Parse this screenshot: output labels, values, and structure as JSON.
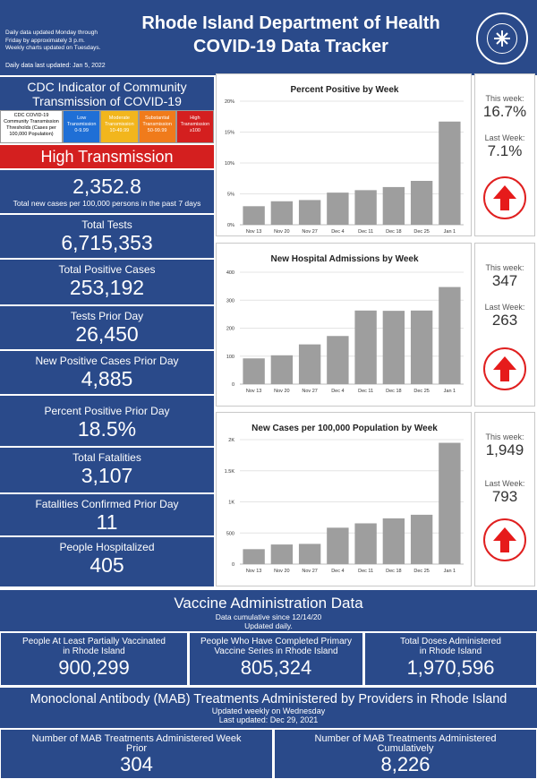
{
  "header": {
    "note_line1": "Daily data updated Monday through",
    "note_line2": "Friday by approximately 3 p.m.",
    "note_line3": "Weekly charts updated on Tuesdays.",
    "last_updated": "Daily data last updated: Jan 5, 2022",
    "title_line1": "Rhode Island Department of Health",
    "title_line2": "COVID-19 Data Tracker",
    "seal_text": "RHODE ISLAND DEPARTMENT OF HEALTH"
  },
  "cdc": {
    "title_line1": "CDC Indicator of Community",
    "title_line2": "Transmission of COVID-19",
    "legend_label": "CDC COVID-19 Community Transmission Thresholds (Cases per 100,000 Population)",
    "levels": [
      {
        "name": "Low Transmission",
        "range": "0-9.99",
        "color": "#1f6fd6"
      },
      {
        "name": "Moderate Transmission",
        "range": "10-49.99",
        "color": "#f2b61d"
      },
      {
        "name": "Substantial Transmission",
        "range": "50-99.99",
        "color": "#f07b1b"
      },
      {
        "name": "High Transmission",
        "range": "≥100",
        "color": "#d41f1f"
      }
    ],
    "status": "High Transmission",
    "status_color": "#d41f1f",
    "rate": "2,352.8",
    "rate_label": "Total new cases per 100,000 persons in the past 7 days"
  },
  "stats": [
    {
      "label": "Total Tests",
      "value": "6,715,353"
    },
    {
      "label": "Total Positive Cases",
      "value": "253,192"
    },
    {
      "label": "Tests Prior Day",
      "value": "26,450"
    },
    {
      "label": "New Positive Cases Prior Day",
      "value": "4,885"
    },
    {
      "label": "Percent Positive Prior Day",
      "value": "18.5%"
    },
    {
      "label": "Total Fatalities",
      "value": "3,107"
    },
    {
      "label": "Fatalities Confirmed Prior Day",
      "value": "11"
    },
    {
      "label": "People Hospitalized",
      "value": "405"
    }
  ],
  "chart_data": [
    {
      "type": "bar",
      "title": "Percent Positive by Week",
      "categories": [
        "Nov 13",
        "Nov 20",
        "Nov 27",
        "Dec 4",
        "Dec 11",
        "Dec 18",
        "Dec 25",
        "Jan 1"
      ],
      "values": [
        3.0,
        3.8,
        4.0,
        5.2,
        5.6,
        6.1,
        7.1,
        16.7
      ],
      "ylim": [
        0,
        20
      ],
      "yticks": [
        0,
        5,
        10,
        15,
        20
      ],
      "ytick_labels": [
        "0%",
        "5%",
        "10%",
        "15%",
        "20%"
      ],
      "color": "#9e9e9e"
    },
    {
      "type": "bar",
      "title": "New Hospital Admissions by Week",
      "categories": [
        "Nov 13",
        "Nov 20",
        "Nov 27",
        "Dec 4",
        "Dec 11",
        "Dec 18",
        "Dec 25",
        "Jan 1"
      ],
      "values": [
        92,
        103,
        142,
        172,
        263,
        262,
        263,
        347
      ],
      "ylim": [
        0,
        400
      ],
      "yticks": [
        0,
        100,
        200,
        300,
        400
      ],
      "ytick_labels": [
        "0",
        "100",
        "200",
        "300",
        "400"
      ],
      "color": "#9e9e9e"
    },
    {
      "type": "bar",
      "title": "New Cases per 100,000 Population by Week",
      "categories": [
        "Nov 13",
        "Nov 20",
        "Nov 27",
        "Dec 4",
        "Dec 11",
        "Dec 18",
        "Dec 25",
        "Jan 1"
      ],
      "values": [
        240,
        315,
        325,
        585,
        655,
        735,
        793,
        1949
      ],
      "ylim": [
        0,
        2000
      ],
      "yticks": [
        0,
        500,
        1000,
        1500,
        2000
      ],
      "ytick_labels": [
        "0",
        "500",
        "1K",
        "1.5K",
        "2K"
      ],
      "color": "#9e9e9e"
    }
  ],
  "side": [
    {
      "this_label": "This week:",
      "this_value": "16.7%",
      "last_label": "Last Week:",
      "last_value": "7.1%",
      "trend": "up-arrow-icon"
    },
    {
      "this_label": "This week:",
      "this_value": "347",
      "last_label": "Last Week:",
      "last_value": "263",
      "trend": "up-arrow-icon"
    },
    {
      "this_label": "This week:",
      "this_value": "1,949",
      "last_label": "Last Week:",
      "last_value": "793",
      "trend": "up-arrow-icon"
    }
  ],
  "vaccine": {
    "title": "Vaccine Administration Data",
    "sub1": "Data cumulative since 12/14/20",
    "sub2": "Updated daily.",
    "boxes": [
      {
        "label1": "People At Least Partially Vaccinated",
        "label2": "in Rhode Island",
        "value": "900,299"
      },
      {
        "label1": "People Who Have Completed Primary",
        "label2": "Vaccine Series in Rhode Island",
        "value": "805,324"
      },
      {
        "label1": "Total Doses Administered",
        "label2": "in Rhode Island",
        "value": "1,970,596"
      }
    ]
  },
  "mab": {
    "title": "Monoclonal Antibody (MAB) Treatments Administered by Providers in Rhode Island",
    "sub1": "Updated weekly on Wednesday",
    "sub2": "Last updated:   Dec 29, 2021",
    "boxes": [
      {
        "label1": "Number of MAB Treatments Administered Week",
        "label2": "Prior",
        "value": "304"
      },
      {
        "label1": "Number of MAB Treatments Administered",
        "label2": "Cumulatively",
        "value": "8,226"
      }
    ]
  }
}
